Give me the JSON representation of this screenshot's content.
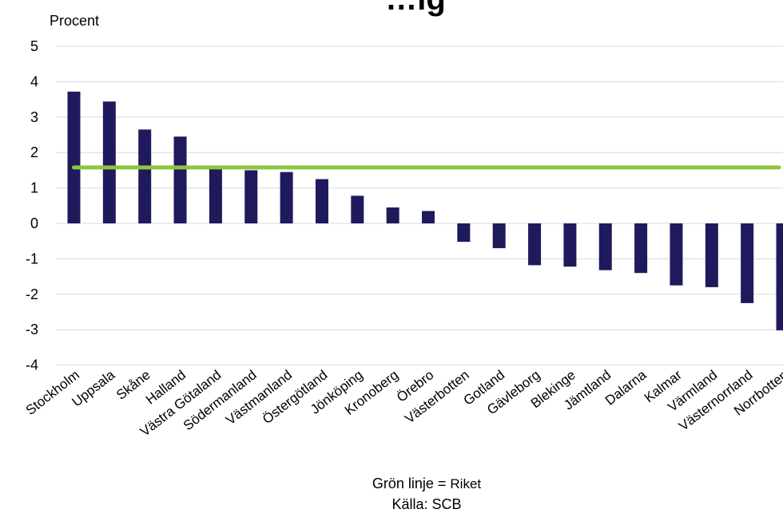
{
  "chart_data": {
    "type": "bar",
    "title": "…ig",
    "ylabel": "Procent",
    "xlabel": "",
    "ylim": [
      -4,
      5
    ],
    "yticks": [
      5,
      4,
      3,
      2,
      1,
      0,
      -1,
      -2,
      -3,
      -4
    ],
    "grid": true,
    "categories": [
      "Stockholm",
      "Uppsala",
      "Skåne",
      "Halland",
      "Västra Götaland",
      "Södermanland",
      "Västmanland",
      "Östergötland",
      "Jönköping",
      "Kronoberg",
      "Örebro",
      "Västerbotten",
      "Gotland",
      "Gävleborg",
      "Blekinge",
      "Jämtland",
      "Dalarna",
      "Kalmar",
      "Värmland",
      "Västernorrland",
      "Norrbotten"
    ],
    "values": [
      3.72,
      3.44,
      2.65,
      2.45,
      1.55,
      1.5,
      1.45,
      1.25,
      0.78,
      0.45,
      0.35,
      -0.52,
      -0.7,
      -1.18,
      -1.22,
      -1.32,
      -1.4,
      -1.75,
      -1.8,
      -2.25,
      -3.02
    ],
    "reference_line": {
      "value": 1.58,
      "label": "Riket"
    },
    "colors": {
      "bar": "#1f1a5c",
      "reference_line": "#8cc63f",
      "grid": "#d9d9d9"
    }
  },
  "footer": {
    "note_prefix": "Grön linje = ",
    "note_suffix": "Riket",
    "source": "Källa: SCB"
  }
}
